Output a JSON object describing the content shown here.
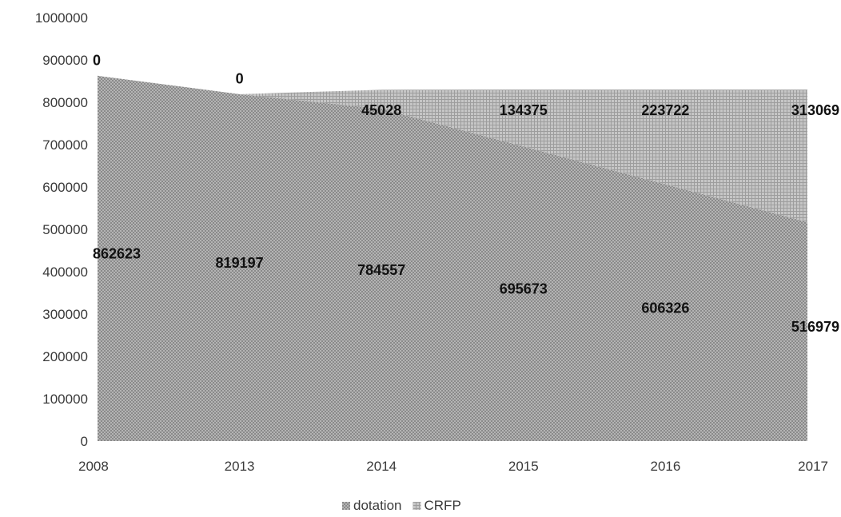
{
  "chart_data": {
    "type": "area",
    "stacked": true,
    "categories": [
      "2008",
      "2013",
      "2014",
      "2015",
      "2016",
      "2017"
    ],
    "series": [
      {
        "name": "dotation",
        "values": [
          862623,
          819197,
          784557,
          695673,
          606326,
          516979
        ],
        "color": "#9a9a9a"
      },
      {
        "name": "CRFP",
        "values": [
          0,
          0,
          45028,
          134375,
          223722,
          313069
        ],
        "color": "#b5b5b5"
      }
    ],
    "ylim": [
      0,
      1000000
    ],
    "yticks": [
      "0",
      "100000",
      "200000",
      "300000",
      "400000",
      "500000",
      "600000",
      "700000",
      "800000",
      "900000",
      "1000000"
    ],
    "grid": false,
    "legend": "bottom"
  }
}
